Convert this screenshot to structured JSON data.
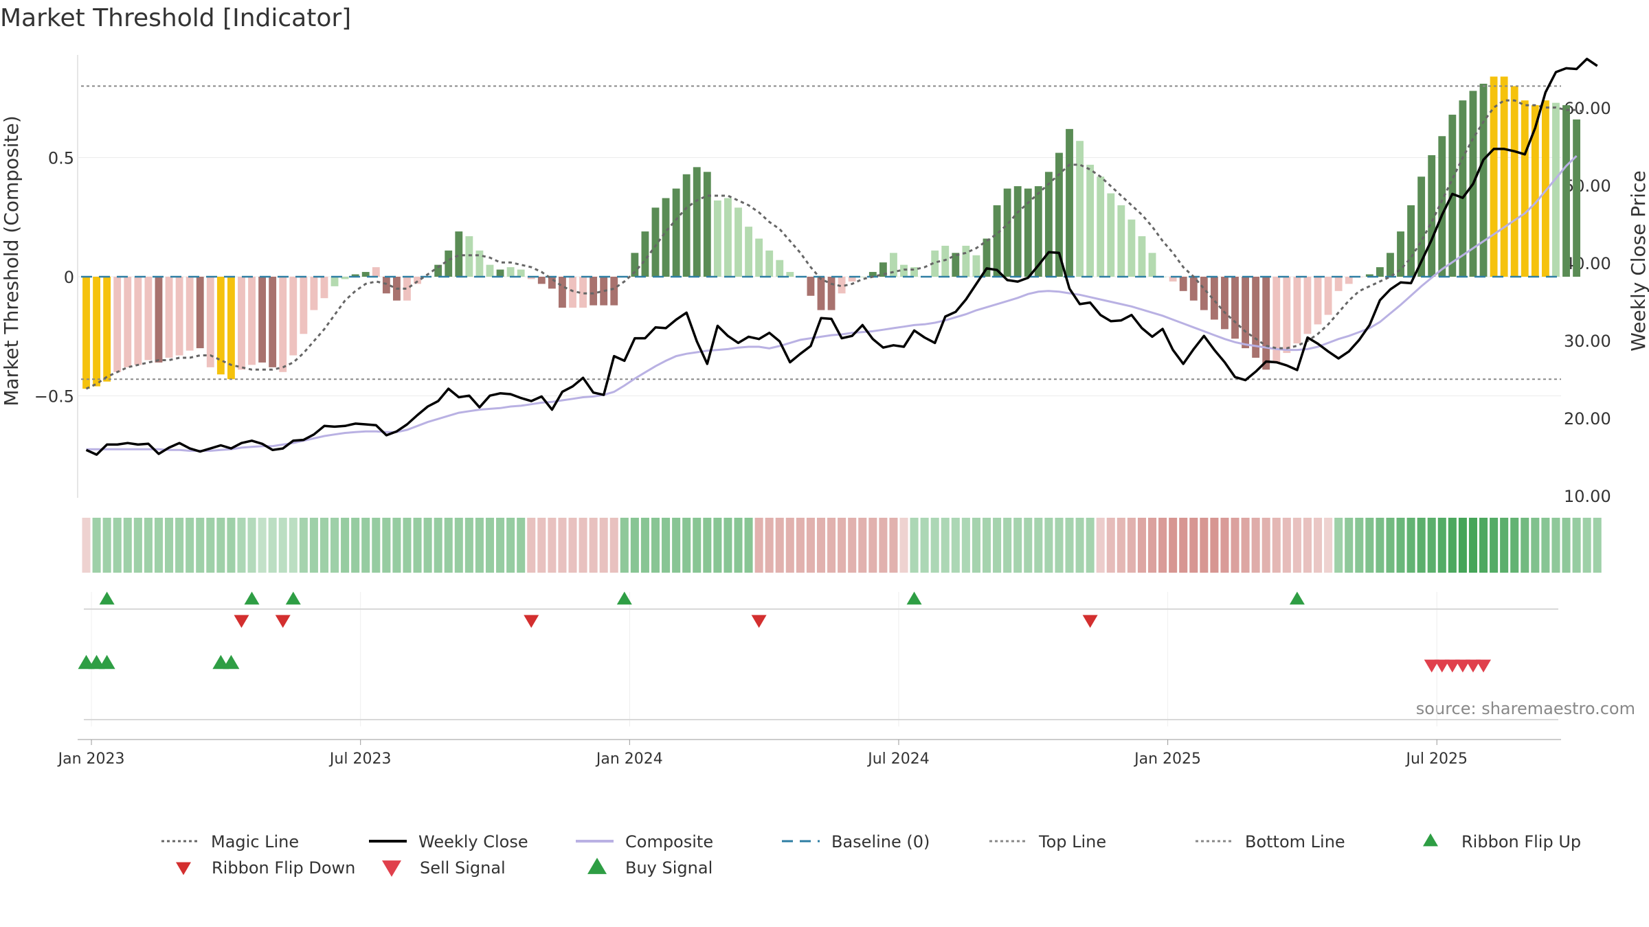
{
  "chart_data": {
    "type": "bar",
    "title": "Market Threshold [Indicator]",
    "ylabel": "Market Threshold (Composite)",
    "y2label": "Weekly Close Price",
    "source": "source: sharemaestro.com",
    "ylim": [
      -0.93,
      0.93
    ],
    "y2lim": [
      10,
      67
    ],
    "yticks": [
      {
        "v": -0.5,
        "label": "−0.5"
      },
      {
        "v": 0,
        "label": "0"
      },
      {
        "v": 0.5,
        "label": "0.5"
      }
    ],
    "y2ticks": [
      {
        "v": 10,
        "label": "10.00"
      },
      {
        "v": 20,
        "label": "20.00"
      },
      {
        "v": 30,
        "label": "30.00"
      },
      {
        "v": 40,
        "label": "40.00"
      },
      {
        "v": 50,
        "label": "50.00"
      },
      {
        "v": 60,
        "label": "60.00"
      }
    ],
    "xticks": [
      {
        "week": 1,
        "label": "Jan 2023"
      },
      {
        "week": 27,
        "label": "Jul 2023"
      },
      {
        "week": 53,
        "label": "Jan 2024"
      },
      {
        "week": 79,
        "label": "Jul 2024"
      },
      {
        "week": 105,
        "label": "Jan 2025"
      },
      {
        "week": 131,
        "label": "Jul 2025"
      }
    ],
    "top_line": 0.8,
    "bottom_line": -0.43,
    "grid": true,
    "legend_placement": "bottom",
    "weeks": 143,
    "bars": [
      -0.47,
      -0.46,
      -0.44,
      -0.4,
      -0.38,
      -0.37,
      -0.35,
      -0.36,
      -0.34,
      -0.33,
      -0.31,
      -0.3,
      -0.38,
      -0.41,
      -0.43,
      -0.39,
      -0.37,
      -0.36,
      -0.38,
      -0.4,
      -0.33,
      -0.24,
      -0.14,
      -0.09,
      -0.04,
      -0.01,
      0.01,
      0.02,
      0.04,
      -0.07,
      -0.1,
      -0.1,
      -0.03,
      0.0,
      0.05,
      0.11,
      0.19,
      0.17,
      0.11,
      0.05,
      0.03,
      0.04,
      0.03,
      -0.01,
      -0.03,
      -0.05,
      -0.13,
      -0.13,
      -0.13,
      -0.12,
      -0.12,
      -0.12,
      0.0,
      0.1,
      0.19,
      0.29,
      0.33,
      0.37,
      0.43,
      0.46,
      0.44,
      0.32,
      0.33,
      0.29,
      0.21,
      0.16,
      0.11,
      0.07,
      0.02,
      0.0,
      -0.08,
      -0.14,
      -0.14,
      -0.07,
      -0.02,
      0.0,
      0.02,
      0.06,
      0.1,
      0.05,
      0.04,
      0.0,
      0.11,
      0.13,
      0.1,
      0.13,
      0.09,
      0.16,
      0.3,
      0.37,
      0.38,
      0.37,
      0.38,
      0.44,
      0.52,
      0.62,
      0.57,
      0.47,
      0.42,
      0.35,
      0.3,
      0.24,
      0.17,
      0.1,
      0.0,
      -0.02,
      -0.06,
      -0.1,
      -0.14,
      -0.18,
      -0.22,
      -0.26,
      -0.3,
      -0.34,
      -0.39,
      -0.36,
      -0.32,
      -0.28,
      -0.24,
      -0.2,
      -0.16,
      -0.06,
      -0.03,
      0.0,
      0.01,
      0.04,
      0.1,
      0.19,
      0.3,
      0.42,
      0.51,
      0.59,
      0.68,
      0.74,
      0.78,
      0.81,
      0.84,
      0.84,
      0.8,
      0.74,
      0.72,
      0.74,
      0.73,
      0.72,
      0.66
    ],
    "bar_categories": [
      "Y",
      "Y",
      "Y",
      "NL",
      "NL",
      "NL",
      "NL",
      "ND",
      "NL",
      "NL",
      "NL",
      "ND",
      "NL",
      "Y",
      "Y",
      "NL",
      "NL",
      "ND",
      "ND",
      "NL",
      "NL",
      "NL",
      "NL",
      "NL",
      "PL",
      "PL",
      "PD",
      "PD",
      "NL",
      "ND",
      "ND",
      "NL",
      "NL",
      "PL",
      "PD",
      "PD",
      "PD",
      "PL",
      "PL",
      "PL",
      "PD",
      "PL",
      "PL",
      "NL",
      "ND",
      "ND",
      "ND",
      "NL",
      "NL",
      "ND",
      "ND",
      "ND",
      "PD",
      "PD",
      "PD",
      "PD",
      "PD",
      "PD",
      "PD",
      "PD",
      "PD",
      "PL",
      "PL",
      "PL",
      "PL",
      "PL",
      "PL",
      "PL",
      "PL",
      "PL",
      "ND",
      "ND",
      "ND",
      "NL",
      "NL",
      "PL",
      "PD",
      "PD",
      "PL",
      "PL",
      "PL",
      "NL",
      "PL",
      "PL",
      "PD",
      "PL",
      "PL",
      "PD",
      "PD",
      "PD",
      "PD",
      "PD",
      "PD",
      "PD",
      "PD",
      "PD",
      "PL",
      "PL",
      "PL",
      "PL",
      "PL",
      "PL",
      "PL",
      "PL",
      "PL",
      "NL",
      "ND",
      "ND",
      "ND",
      "ND",
      "ND",
      "ND",
      "ND",
      "ND",
      "ND",
      "NL",
      "NL",
      "NL",
      "NL",
      "NL",
      "NL",
      "NL",
      "NL",
      "NL",
      "PD",
      "PD",
      "PD",
      "PD",
      "PD",
      "PD",
      "PD",
      "PD",
      "PD",
      "PD",
      "PD",
      "PD",
      "Y",
      "Y",
      "Y",
      "Y",
      "Y",
      "Y",
      "PL",
      "PD",
      "PD",
      "PL",
      "PL",
      "PL"
    ],
    "magic_line": [
      -0.47,
      -0.45,
      -0.42,
      -0.4,
      -0.38,
      -0.37,
      -0.36,
      -0.35,
      -0.35,
      -0.34,
      -0.34,
      -0.33,
      -0.33,
      -0.35,
      -0.37,
      -0.38,
      -0.39,
      -0.39,
      -0.39,
      -0.38,
      -0.36,
      -0.32,
      -0.27,
      -0.22,
      -0.16,
      -0.1,
      -0.06,
      -0.03,
      -0.02,
      -0.03,
      -0.05,
      -0.05,
      -0.02,
      0.01,
      0.04,
      0.07,
      0.09,
      0.09,
      0.09,
      0.08,
      0.06,
      0.06,
      0.05,
      0.04,
      0.02,
      -0.01,
      -0.04,
      -0.06,
      -0.07,
      -0.07,
      -0.06,
      -0.05,
      -0.02,
      0.02,
      0.07,
      0.13,
      0.19,
      0.24,
      0.29,
      0.32,
      0.34,
      0.34,
      0.34,
      0.32,
      0.3,
      0.27,
      0.23,
      0.2,
      0.15,
      0.1,
      0.04,
      -0.01,
      -0.03,
      -0.04,
      -0.03,
      -0.01,
      0.0,
      0.01,
      0.02,
      0.03,
      0.03,
      0.04,
      0.06,
      0.07,
      0.09,
      0.1,
      0.12,
      0.15,
      0.18,
      0.22,
      0.27,
      0.31,
      0.35,
      0.39,
      0.43,
      0.47,
      0.47,
      0.45,
      0.42,
      0.38,
      0.34,
      0.3,
      0.26,
      0.21,
      0.15,
      0.1,
      0.04,
      0.0,
      -0.05,
      -0.1,
      -0.15,
      -0.19,
      -0.23,
      -0.26,
      -0.29,
      -0.3,
      -0.3,
      -0.29,
      -0.27,
      -0.24,
      -0.2,
      -0.15,
      -0.1,
      -0.06,
      -0.04,
      -0.02,
      0.0,
      0.03,
      0.08,
      0.15,
      0.23,
      0.32,
      0.41,
      0.5,
      0.58,
      0.65,
      0.71,
      0.74,
      0.74,
      0.72,
      0.72,
      0.71,
      0.71,
      0.7,
      0.7,
      0.69
    ],
    "weekly_close": [
      15.9,
      15.3,
      16.6,
      16.6,
      16.8,
      16.6,
      16.7,
      15.4,
      16.2,
      16.8,
      16.1,
      15.7,
      16.1,
      16.5,
      16.1,
      16.8,
      17.1,
      16.7,
      15.9,
      16.1,
      17.1,
      17.2,
      17.9,
      19.0,
      18.9,
      19.0,
      19.3,
      19.2,
      19.1,
      17.8,
      18.3,
      19.2,
      20.4,
      21.5,
      22.2,
      23.8,
      22.7,
      22.9,
      21.4,
      22.9,
      23.2,
      23.1,
      22.6,
      22.2,
      22.8,
      21.1,
      23.4,
      24.1,
      25.2,
      23.3,
      23.0,
      28.0,
      27.4,
      30.3,
      30.3,
      31.7,
      31.6,
      32.7,
      33.6,
      29.9,
      27.0,
      31.9,
      30.6,
      29.7,
      30.5,
      30.2,
      31.0,
      29.9,
      27.2,
      28.3,
      29.3,
      32.9,
      32.8,
      30.3,
      30.6,
      32.0,
      30.2,
      29.1,
      29.4,
      29.2,
      31.3,
      30.4,
      29.7,
      33.1,
      33.7,
      35.3,
      37.3,
      39.3,
      39.1,
      37.8,
      37.6,
      38.1,
      39.7,
      41.4,
      41.3,
      36.7,
      34.7,
      34.9,
      33.3,
      32.5,
      32.6,
      33.3,
      31.6,
      30.5,
      31.5,
      28.8,
      27.0,
      28.9,
      30.6,
      28.8,
      27.2,
      25.3,
      24.9,
      26.0,
      27.3,
      27.2,
      26.8,
      26.2,
      30.4,
      29.6,
      28.6,
      27.7,
      28.6,
      30.1,
      32.0,
      35.2,
      36.6,
      37.5,
      37.4,
      40.2,
      43.0,
      46.2,
      48.9,
      48.4,
      50.2,
      53.3,
      54.7,
      54.7,
      54.4,
      54.0,
      57.4,
      62.0,
      64.6,
      65.1,
      65.0,
      66.3,
      65.4
    ],
    "composite": [
      16.0,
      16.0,
      16.0,
      16.0,
      16.0,
      16.0,
      16.0,
      16.0,
      15.9,
      15.9,
      15.8,
      15.8,
      15.8,
      15.9,
      16.0,
      16.2,
      16.3,
      16.4,
      16.4,
      16.6,
      16.8,
      17.1,
      17.4,
      17.7,
      17.9,
      18.1,
      18.2,
      18.3,
      18.3,
      18.2,
      18.2,
      18.5,
      19.0,
      19.5,
      19.9,
      20.3,
      20.7,
      20.9,
      21.1,
      21.2,
      21.3,
      21.5,
      21.6,
      21.8,
      22.0,
      22.1,
      22.3,
      22.5,
      22.7,
      22.8,
      23.0,
      23.4,
      24.2,
      25.1,
      25.9,
      26.7,
      27.4,
      28.0,
      28.3,
      28.5,
      28.7,
      28.8,
      28.9,
      29.1,
      29.2,
      29.2,
      29.0,
      29.3,
      29.7,
      30.1,
      30.3,
      30.5,
      30.7,
      30.8,
      31.0,
      31.1,
      31.2,
      31.4,
      31.6,
      31.8,
      32.0,
      32.1,
      32.3,
      32.6,
      33.0,
      33.4,
      33.9,
      34.3,
      34.7,
      35.1,
      35.5,
      36.0,
      36.3,
      36.4,
      36.3,
      36.1,
      35.9,
      35.6,
      35.3,
      35.0,
      34.7,
      34.4,
      34.0,
      33.6,
      33.2,
      32.7,
      32.2,
      31.7,
      31.2,
      30.7,
      30.2,
      29.8,
      29.5,
      29.3,
      29.1,
      28.9,
      28.8,
      28.8,
      28.9,
      29.2,
      29.7,
      30.2,
      30.6,
      31.1,
      31.6,
      32.4,
      33.5,
      34.6,
      35.8,
      37.0,
      38.1,
      39.2,
      40.1,
      41.0,
      41.9,
      42.8,
      43.7,
      44.6,
      45.5,
      46.4,
      47.7,
      49.3,
      50.9,
      52.5,
      53.8
    ],
    "ribbon": [
      -0.15,
      0.4,
      0.4,
      0.4,
      0.4,
      0.4,
      0.4,
      0.4,
      0.4,
      0.4,
      0.4,
      0.4,
      0.4,
      0.4,
      0.4,
      0.3,
      0.25,
      0.15,
      0.2,
      0.2,
      0.2,
      0.35,
      0.4,
      0.4,
      0.4,
      0.45,
      0.45,
      0.45,
      0.45,
      0.45,
      0.45,
      0.45,
      0.45,
      0.45,
      0.45,
      0.45,
      0.45,
      0.45,
      0.45,
      0.45,
      0.45,
      0.45,
      0.45,
      -0.3,
      -0.3,
      -0.3,
      -0.3,
      -0.3,
      -0.3,
      -0.3,
      -0.3,
      -0.3,
      0.5,
      0.55,
      0.55,
      0.55,
      0.55,
      0.55,
      0.55,
      0.55,
      0.55,
      0.55,
      0.55,
      0.55,
      0.55,
      -0.45,
      -0.45,
      -0.45,
      -0.45,
      -0.45,
      -0.45,
      -0.45,
      -0.45,
      -0.45,
      -0.45,
      -0.45,
      -0.45,
      -0.45,
      -0.45,
      -0.15,
      0.3,
      0.3,
      0.3,
      0.3,
      0.3,
      0.3,
      0.35,
      0.35,
      0.35,
      0.35,
      0.35,
      0.35,
      0.35,
      0.35,
      0.35,
      0.35,
      0.35,
      0.35,
      -0.2,
      -0.35,
      -0.4,
      -0.45,
      -0.55,
      -0.6,
      -0.65,
      -0.7,
      -0.7,
      -0.7,
      -0.7,
      -0.7,
      -0.65,
      -0.6,
      -0.55,
      -0.5,
      -0.45,
      -0.4,
      -0.35,
      -0.3,
      -0.3,
      -0.25,
      -0.15,
      0.4,
      0.5,
      0.55,
      0.6,
      0.65,
      0.7,
      0.75,
      0.8,
      0.85,
      0.85,
      0.9,
      0.95,
      1.0,
      1.0,
      0.95,
      0.9,
      0.85,
      0.8,
      0.7,
      0.6,
      0.55,
      0.5,
      0.5,
      0.45,
      0.4,
      0.4
    ],
    "ribbon_flip_up": [
      2,
      16,
      20,
      52,
      80,
      117
    ],
    "ribbon_flip_down": [
      15,
      19,
      43,
      65,
      97
    ],
    "buy_signal": [
      0,
      1,
      2,
      13,
      14
    ],
    "sell_signal": [
      130,
      131,
      132,
      133,
      134,
      135
    ],
    "colors": {
      "positive_dark": "#5a8c55",
      "positive_light": "#b4dab0",
      "negative_dark": "#a8726e",
      "negative_light": "#eec2bf",
      "yellow": "#f5c20d",
      "weekly_close": "#000000",
      "composite": "#b9b1e3",
      "magic_line": "#666666",
      "baseline": "#2e7ea3",
      "top_bottom_line": "#888888",
      "flip_up": "#2e9e44",
      "flip_down": "#d32f2f",
      "sell": "#e0404c",
      "buy": "#2e9e44"
    },
    "legend": [
      {
        "label": "Magic Line",
        "kind": "dotted",
        "color": "#666666"
      },
      {
        "label": "Weekly Close",
        "kind": "solid",
        "color": "#000000"
      },
      {
        "label": "Composite",
        "kind": "solid",
        "color": "#b9b1e3"
      },
      {
        "label": "Baseline (0)",
        "kind": "dashed",
        "color": "#2e7ea3"
      },
      {
        "label": "Top Line",
        "kind": "dotted",
        "color": "#888888"
      },
      {
        "label": "Bottom Line",
        "kind": "dotted",
        "color": "#888888"
      },
      {
        "label": "Ribbon Flip Up",
        "kind": "tri-up",
        "color": "#2e9e44"
      },
      {
        "label": "Ribbon Flip Down",
        "kind": "tri-down",
        "color": "#d32f2f"
      },
      {
        "label": "Sell Signal",
        "kind": "tri-down-big",
        "color": "#e0404c"
      },
      {
        "label": "Buy Signal",
        "kind": "tri-up-big",
        "color": "#2e9e44"
      }
    ]
  }
}
